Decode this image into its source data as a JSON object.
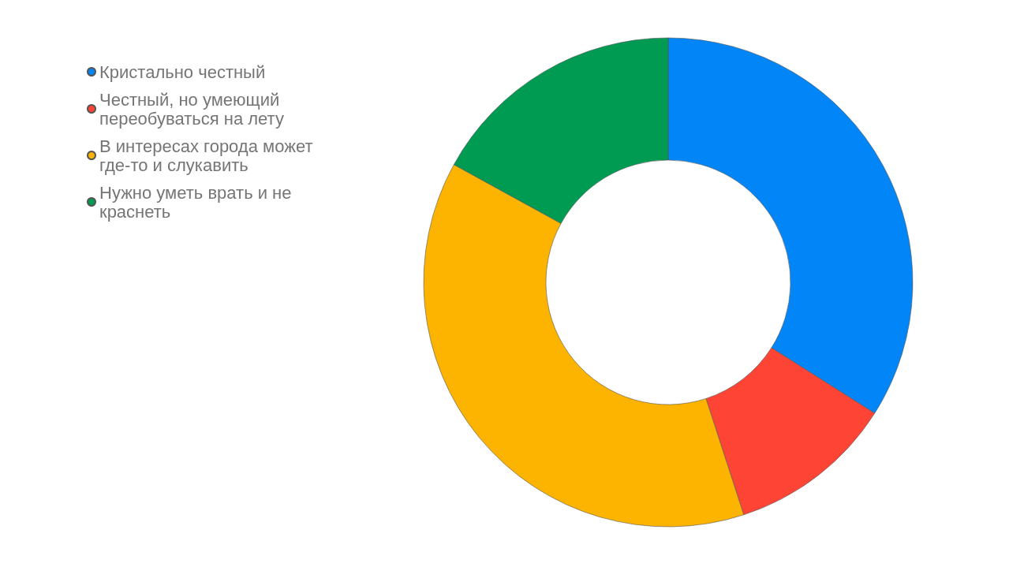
{
  "chart_data": {
    "type": "donut",
    "categories": [
      "Кристально честный",
      "Честный, но умеющий переобуваться на лету",
      "В интересах города может где-то и слукавить",
      "Нужно уметь врать и не краснеть"
    ],
    "values": [
      34,
      11,
      38,
      17
    ],
    "colors": [
      "#0286f7",
      "#fe4535",
      "#fdb400",
      "#009b53"
    ],
    "legend": "top left"
  }
}
